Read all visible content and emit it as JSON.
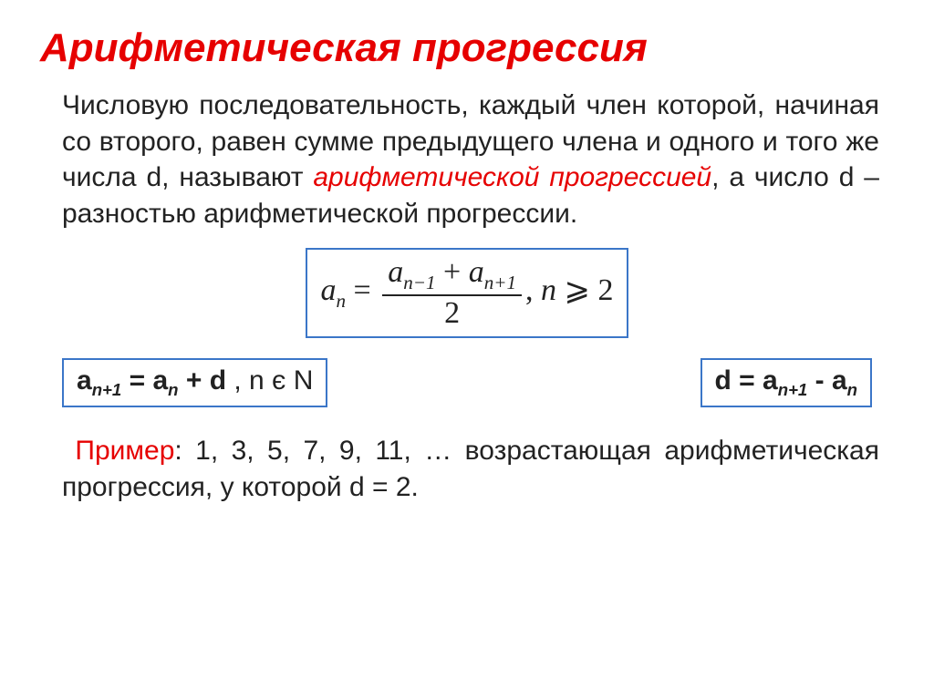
{
  "title": "Арифметическая прогрессия",
  "definition": {
    "part1": "Числовую последовательность, каждый член которой, начиная со второго, равен сумме предыдущего члена и одного и того же числа d, называют ",
    "term": "арифметической прогрессией",
    "part2": ", а число d – разностью арифметической прогрессии."
  },
  "formula_mean": {
    "lhs_var": "a",
    "lhs_sub": "n",
    "num_var1": "a",
    "num_sub1": "n−1",
    "num_plus": "+",
    "num_var2": "a",
    "num_sub2": "n+1",
    "den": "2",
    "cond_sep": ", ",
    "cond_var": "n",
    "cond_sym": " ⩾ ",
    "cond_val": "2",
    "border_color": "#3b76c8"
  },
  "formula_recur": {
    "lhs_var": "a",
    "lhs_sub": "n+1",
    "eq": " = ",
    "rhs_var": "a",
    "rhs_sub": "n",
    "plus_d": " + d ",
    "comma": ",  ",
    "n_in_N_n": "n",
    "n_in_N_in": " є ",
    "n_in_N_N": "N",
    "border_color": "#3b76c8"
  },
  "formula_diff": {
    "lhs": "d",
    "eq": " =  ",
    "rhs_var1": "a",
    "rhs_sub1": "n+1",
    "minus": " - ",
    "rhs_var2": "a",
    "rhs_sub2": "n",
    "border_color": "#3b76c8"
  },
  "example": {
    "label": "Пример",
    "text": ": 1, 3, 5, 7, 9, 11, … возрастающая арифметическая прогрессия,      у которой d = 2."
  },
  "colors": {
    "title": "#e60000",
    "body_text": "#222222",
    "box_border": "#3b76c8",
    "background": "#ffffff"
  },
  "fonts": {
    "title_size_pt": 44,
    "body_size_pt": 30,
    "formula_size_pt": 34
  }
}
